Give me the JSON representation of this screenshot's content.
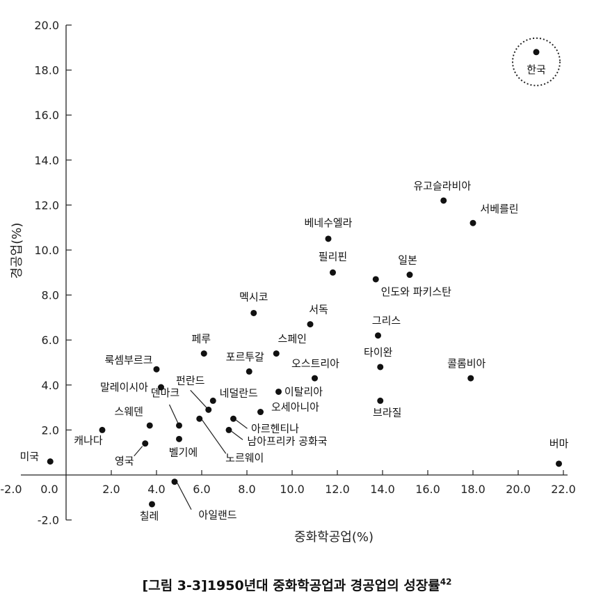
{
  "chart_data": {
    "type": "scatter",
    "xlabel": "중화학공업(%)",
    "ylabel": "경공업(%)",
    "xlim": [
      -2.0,
      22.0
    ],
    "ylim": [
      -2.0,
      20.0
    ],
    "x_ticks": [
      "-2.0",
      "0.0",
      "2.0",
      "4.0",
      "6.0",
      "8.0",
      "10.0",
      "12.0",
      "14.0",
      "16.0",
      "18.0",
      "20.0",
      "22.0"
    ],
    "y_ticks": [
      "-2.0",
      "2.0",
      "4.0",
      "6.0",
      "8.0",
      "10.0",
      "12.0",
      "14.0",
      "16.0",
      "18.0",
      "20.0"
    ],
    "grid": false,
    "highlight": "한국",
    "points": [
      {
        "name": "한국",
        "x": 20.8,
        "y": 18.8
      },
      {
        "name": "유고슬라비아",
        "x": 16.7,
        "y": 12.2
      },
      {
        "name": "서베를린",
        "x": 18.0,
        "y": 11.2
      },
      {
        "name": "베네수엘라",
        "x": 11.6,
        "y": 10.5
      },
      {
        "name": "필리핀",
        "x": 11.8,
        "y": 9.0
      },
      {
        "name": "일본",
        "x": 15.2,
        "y": 8.9
      },
      {
        "name": "인도와 파키스탄",
        "x": 13.7,
        "y": 8.7
      },
      {
        "name": "멕시코",
        "x": 8.3,
        "y": 7.2
      },
      {
        "name": "서독",
        "x": 10.8,
        "y": 6.7
      },
      {
        "name": "그리스",
        "x": 13.8,
        "y": 6.2
      },
      {
        "name": "페루",
        "x": 6.1,
        "y": 5.4
      },
      {
        "name": "스페인",
        "x": 9.3,
        "y": 5.4
      },
      {
        "name": "포르투갈",
        "x": 8.1,
        "y": 4.6
      },
      {
        "name": "타이완",
        "x": 13.9,
        "y": 4.8
      },
      {
        "name": "룩셈부르크",
        "x": 4.0,
        "y": 4.7
      },
      {
        "name": "오스트리아",
        "x": 11.0,
        "y": 4.3
      },
      {
        "name": "콜롬비아",
        "x": 17.9,
        "y": 4.3
      },
      {
        "name": "말레이시아",
        "x": 4.2,
        "y": 3.9
      },
      {
        "name": "이탈리아",
        "x": 9.4,
        "y": 3.7
      },
      {
        "name": "네덜란드",
        "x": 6.5,
        "y": 3.3
      },
      {
        "name": "브라질",
        "x": 13.9,
        "y": 3.3
      },
      {
        "name": "펀란드",
        "x": 6.3,
        "y": 2.9
      },
      {
        "name": "오세아니아",
        "x": 8.6,
        "y": 2.8
      },
      {
        "name": "스웨덴",
        "x": 3.7,
        "y": 2.2
      },
      {
        "name": "덴마크",
        "x": 5.0,
        "y": 2.2
      },
      {
        "name": "아르헨티나",
        "x": 7.4,
        "y": 2.5
      },
      {
        "name": "캐나다",
        "x": 1.6,
        "y": 2.0
      },
      {
        "name": "남아프리카 공화국",
        "x": 7.2,
        "y": 2.0
      },
      {
        "name": "벨기에",
        "x": 5.0,
        "y": 1.6
      },
      {
        "name": "영국",
        "x": 3.5,
        "y": 1.4
      },
      {
        "name": "노르웨이",
        "x": 5.9,
        "y": 2.5
      },
      {
        "name": "미국",
        "x": -0.7,
        "y": 0.6
      },
      {
        "name": "버마",
        "x": 21.8,
        "y": 0.5
      },
      {
        "name": "아일랜드",
        "x": 4.8,
        "y": -0.3
      },
      {
        "name": "칠레",
        "x": 3.8,
        "y": -1.3
      }
    ]
  },
  "caption": {
    "text": "[그림 3-3]1950년대 중화학공업과 경공업의 성장률",
    "superscript": "42"
  }
}
